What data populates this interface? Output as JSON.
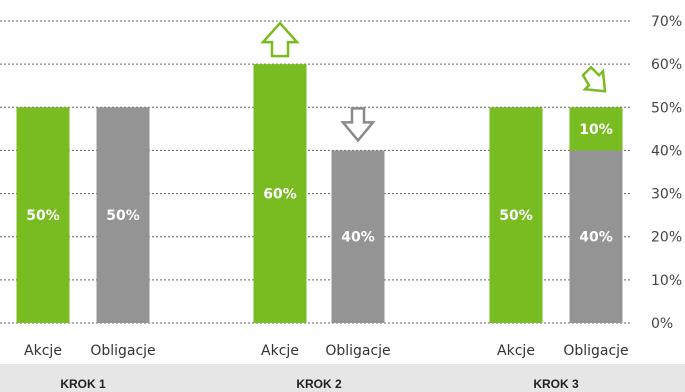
{
  "chart_data": {
    "type": "bar",
    "stacked": true,
    "ylim": [
      0,
      70
    ],
    "yticks": [
      0,
      10,
      20,
      30,
      40,
      50,
      60,
      70
    ],
    "ytick_suffix": "%",
    "y_axis_side": "right",
    "grid": true,
    "groups": [
      {
        "label": "KROK 1",
        "bars": [
          {
            "category": "Akcje",
            "segments": [
              {
                "value": 50,
                "label": "50%",
                "color": "#78bc21"
              }
            ]
          },
          {
            "category": "Obligacje",
            "segments": [
              {
                "value": 50,
                "label": "50%",
                "color": "#949494"
              }
            ]
          }
        ]
      },
      {
        "label": "KROK 2",
        "bars": [
          {
            "category": "Akcje",
            "segments": [
              {
                "value": 60,
                "label": "60%",
                "color": "#78bc21"
              }
            ],
            "arrow": "up"
          },
          {
            "category": "Obligacje",
            "segments": [
              {
                "value": 40,
                "label": "40%",
                "color": "#949494"
              }
            ],
            "arrow": "down"
          }
        ]
      },
      {
        "label": "KROK 3",
        "bars": [
          {
            "category": "Akcje",
            "segments": [
              {
                "value": 50,
                "label": "50%",
                "color": "#78bc21"
              }
            ]
          },
          {
            "category": "Obligacje",
            "segments": [
              {
                "value": 40,
                "label": "40%",
                "color": "#949494"
              },
              {
                "value": 10,
                "label": "10%",
                "color": "#78bc21"
              }
            ],
            "arrow": "diagonal-in"
          }
        ]
      }
    ]
  },
  "colors": {
    "equity": "#78bc21",
    "bonds": "#949494",
    "grid": "#666666",
    "footer_band": "#e6e6e6",
    "arrow_up": "#78bc21",
    "arrow_down": "#8a8a8a",
    "arrow_diagonal": "#78bc21"
  },
  "icons": {
    "up": "arrow-up-icon",
    "down": "arrow-down-icon",
    "diagonal-in": "arrow-down-right-icon"
  }
}
